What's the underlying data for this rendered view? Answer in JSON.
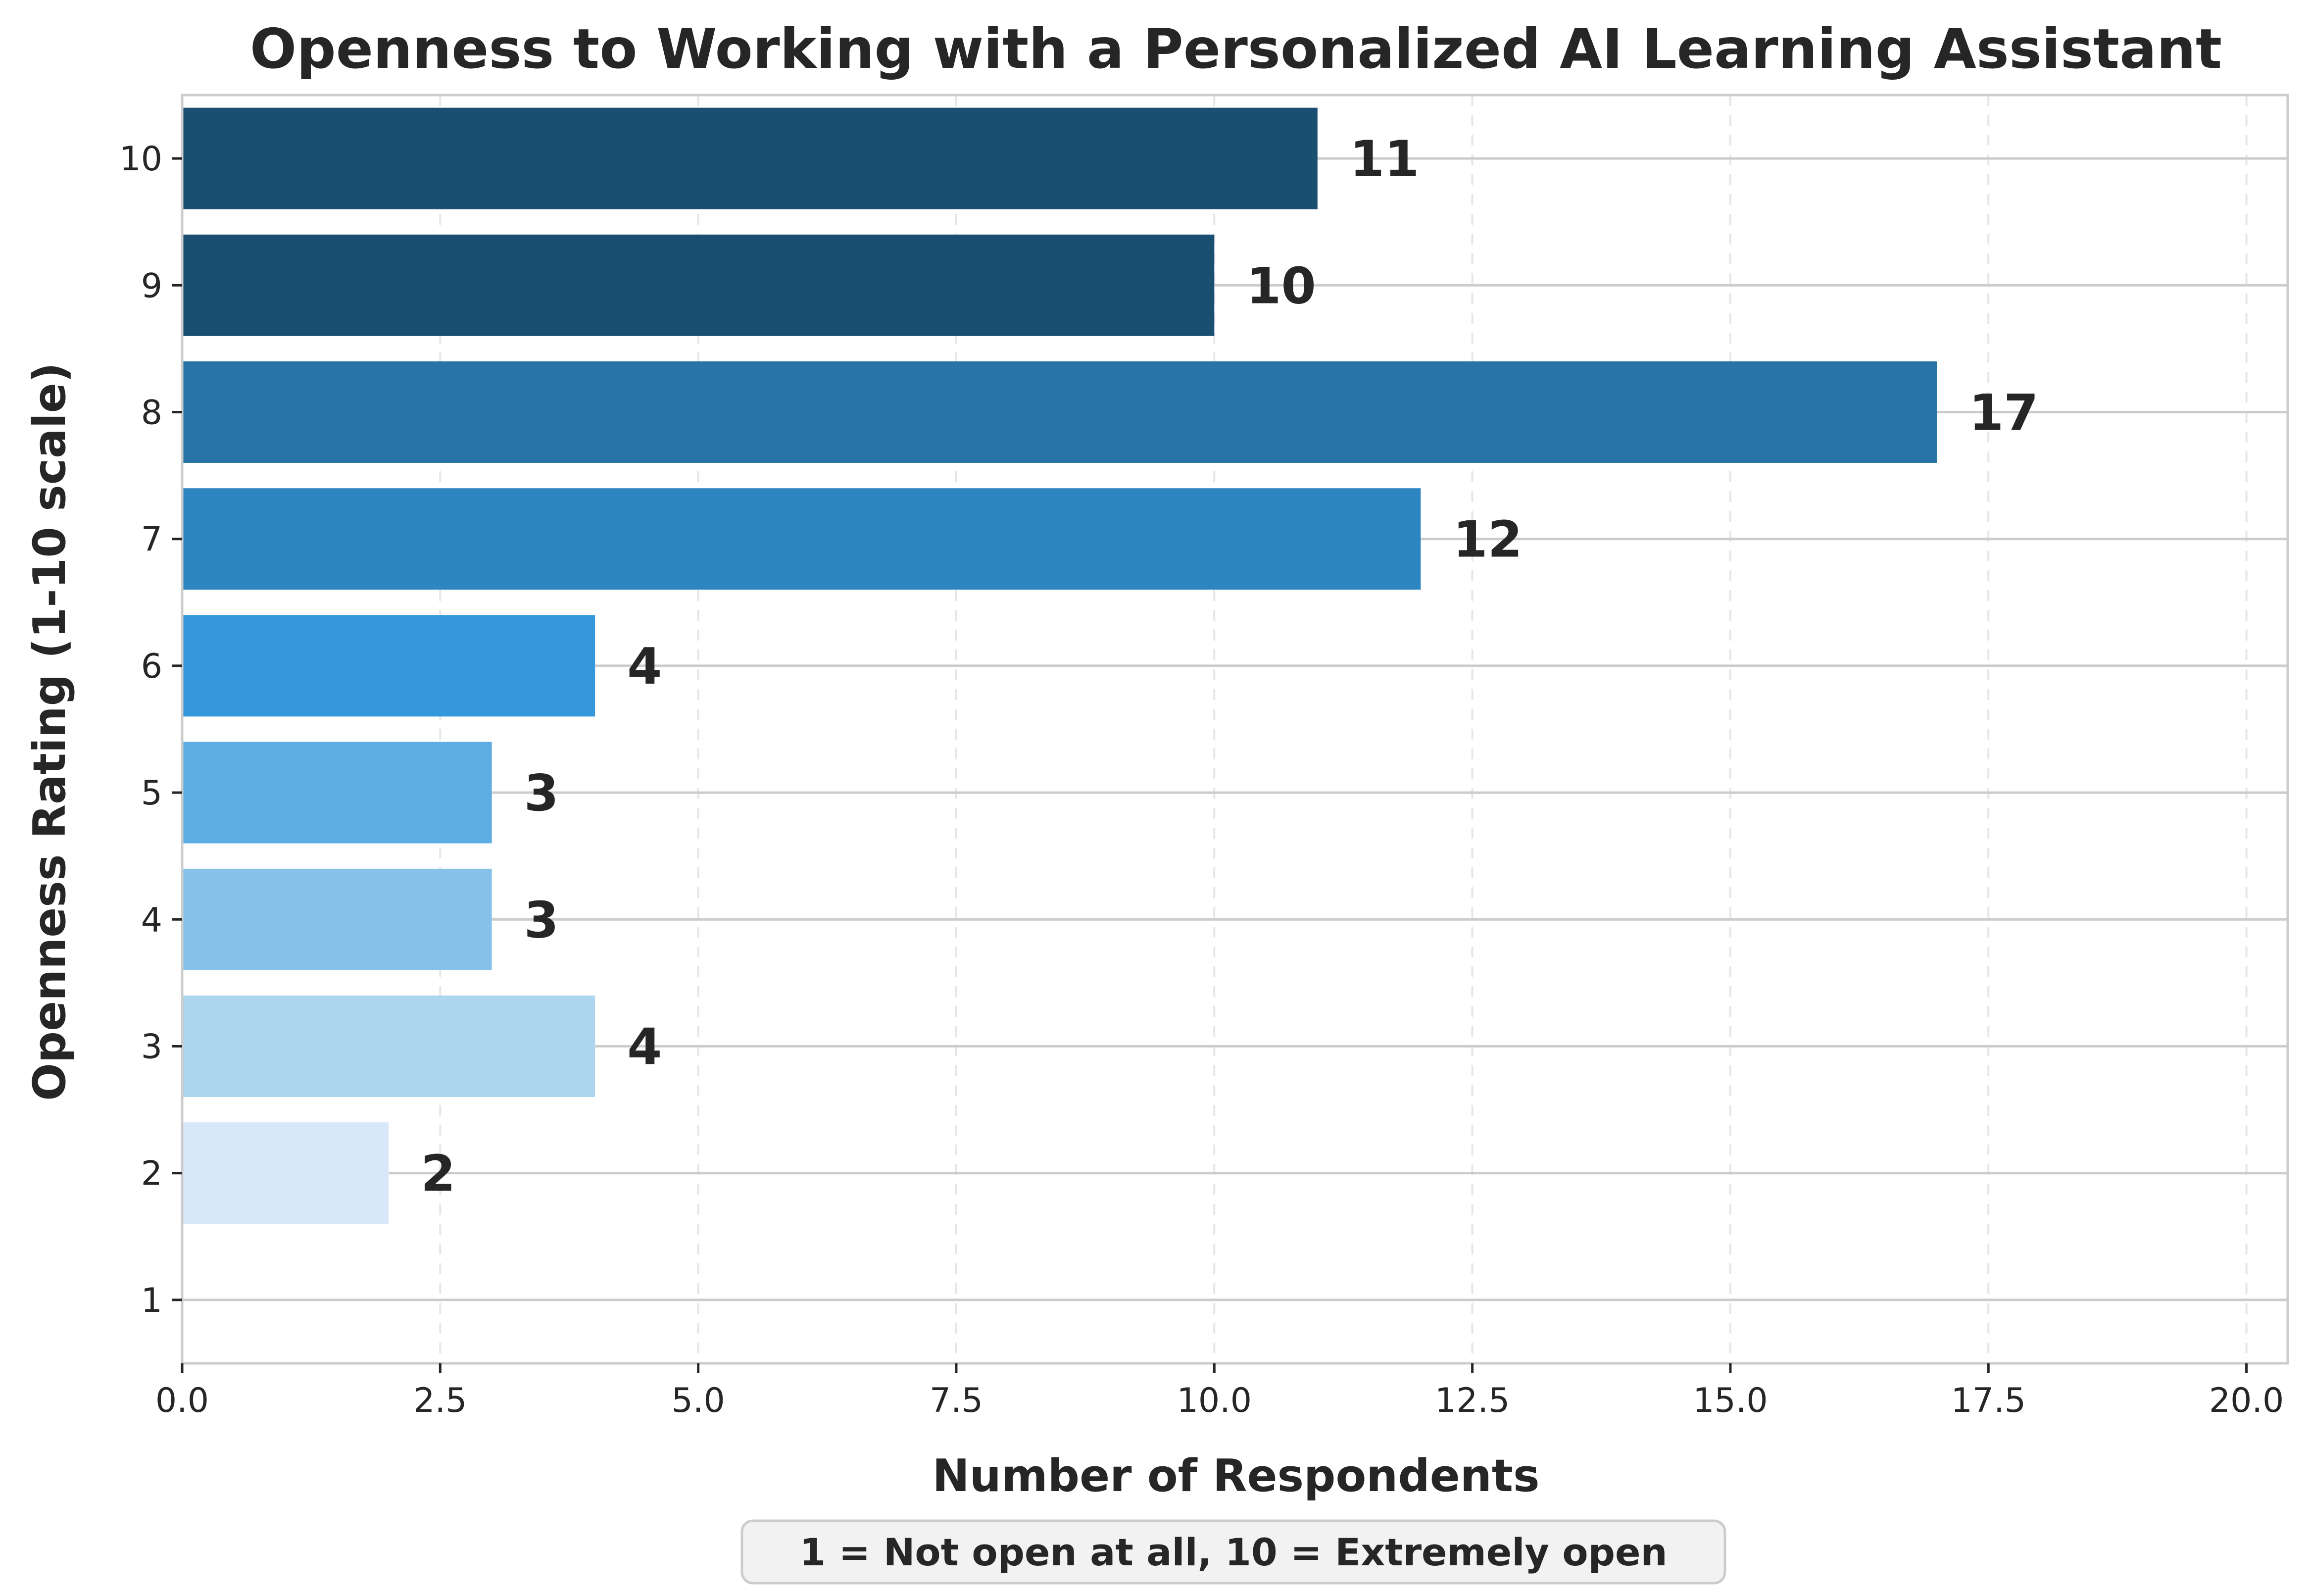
{
  "chart_data": {
    "type": "bar",
    "orientation": "horizontal",
    "title": "Openness to Working with a Personalized AI Learning Assistant",
    "xlabel": "Number of Respondents",
    "ylabel": "Openness Rating (1-10 scale)",
    "categories": [
      "1",
      "2",
      "3",
      "4",
      "5",
      "6",
      "7",
      "8",
      "9",
      "10"
    ],
    "values": [
      0,
      2,
      4,
      3,
      3,
      4,
      12,
      17,
      10,
      11
    ],
    "value_labels": [
      "",
      "2",
      "4",
      "3",
      "3",
      "4",
      "12",
      "17",
      "10",
      "11"
    ],
    "bar_colors": [
      "#ffffff",
      "#d6e8f7",
      "#aed6f1",
      "#85c1e9",
      "#5dade2",
      "#3498db",
      "#2e86c1",
      "#2874a6",
      "#1b4f72",
      "#1b4f72"
    ],
    "xlim": [
      0,
      20.4
    ],
    "xticks": [
      0,
      2.5,
      5,
      7.5,
      10,
      12.5,
      15,
      17.5,
      20
    ],
    "xtick_labels": [
      "0.0",
      "2.5",
      "5.0",
      "7.5",
      "10.0",
      "12.5",
      "15.0",
      "17.5",
      "20.0"
    ],
    "ylim": [
      0.5,
      10.5
    ],
    "grid": true,
    "note": "1 = Not open at all, 10 = Extremely open"
  }
}
